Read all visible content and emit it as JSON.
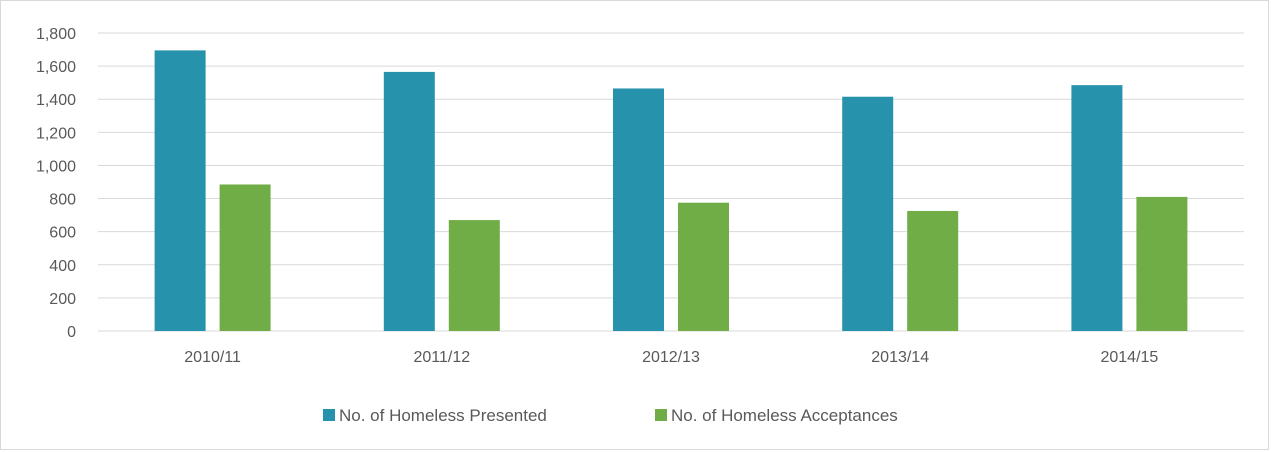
{
  "chart_data": {
    "type": "bar",
    "categories": [
      "2010/11",
      "2011/12",
      "2012/13",
      "2013/14",
      "2014/15"
    ],
    "series": [
      {
        "name": "No. of Homeless Presented",
        "values": [
          1695,
          1565,
          1465,
          1415,
          1485
        ],
        "color": "#2792AB"
      },
      {
        "name": "No. of Homeless Acceptances",
        "values": [
          885,
          670,
          775,
          725,
          810
        ],
        "color": "#70AD47"
      }
    ],
    "ylim": [
      0,
      1800
    ],
    "yticks": [
      "0",
      "200",
      "400",
      "600",
      "800",
      "1,000",
      "1,200",
      "1,400",
      "1,600",
      "1,800"
    ],
    "ytick_values": [
      0,
      200,
      400,
      600,
      800,
      1000,
      1200,
      1400,
      1600,
      1800
    ],
    "grid": true,
    "gridline_color": "#d9d9d9",
    "legend_position": "bottom"
  }
}
